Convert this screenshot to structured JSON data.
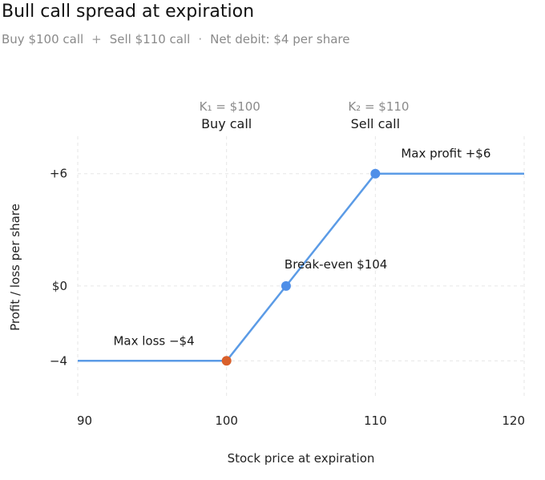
{
  "header": {
    "title": "Bull call spread at expiration",
    "subtitle_buy": "Buy $100 call",
    "subtitle_plus": "+",
    "subtitle_sell": "Sell $110 call",
    "subtitle_dot": "·",
    "subtitle_debit": "Net debit: $4 per share"
  },
  "colors": {
    "line": "#5b9be6",
    "point_main": "#4f8fe8",
    "point_loss": "#d9602b",
    "grid": "#e6e6e6"
  },
  "chart_data": {
    "type": "line",
    "title": "Bull call spread at expiration",
    "xlabel": "Stock price at expiration",
    "ylabel": "Profit / loss per share",
    "xlim": [
      90,
      120
    ],
    "ylim": [
      -6,
      8
    ],
    "x_ticks": [
      {
        "value": 90,
        "label": "90"
      },
      {
        "value": 100,
        "label": "100"
      },
      {
        "value": 110,
        "label": "110"
      },
      {
        "value": 120,
        "label": "120"
      }
    ],
    "y_ticks": [
      {
        "value": 6,
        "label": "+6"
      },
      {
        "value": 0,
        "label": "$0"
      },
      {
        "value": -4,
        "label": "−4"
      }
    ],
    "grid": true,
    "series": [
      {
        "points": [
          {
            "x": 90,
            "y": -4
          },
          {
            "x": 100,
            "y": -4
          },
          {
            "x": 104,
            "y": 0
          },
          {
            "x": 110,
            "y": 6
          },
          {
            "x": 120,
            "y": 6
          }
        ]
      }
    ],
    "markers": [
      {
        "x": 100,
        "y": -4,
        "kind": "loss"
      },
      {
        "x": 104,
        "y": 0,
        "kind": "main"
      },
      {
        "x": 110,
        "y": 6,
        "kind": "main"
      }
    ],
    "strikes": [
      {
        "x": 100,
        "value_label": "K₁ = $100",
        "name": "Buy call"
      },
      {
        "x": 110,
        "value_label": "K₂ = $110",
        "name": "Sell call"
      }
    ],
    "annotations": [
      {
        "x": 100,
        "y": -4,
        "text": "Max loss −$4",
        "anchor": "end"
      },
      {
        "x": 104,
        "y": 0,
        "text": "Break-even $104",
        "anchor": "start"
      },
      {
        "x": 110,
        "y": 6,
        "text": "Max profit +$6",
        "anchor": "start"
      }
    ]
  }
}
